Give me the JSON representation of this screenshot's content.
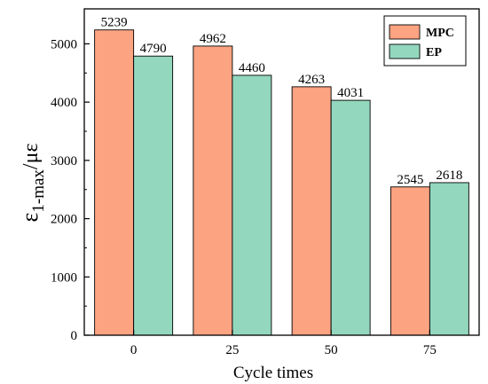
{
  "chart_data": {
    "type": "bar",
    "categories": [
      "0",
      "25",
      "50",
      "75"
    ],
    "series": [
      {
        "name": "MPC",
        "values": [
          5239,
          4962,
          4263,
          2545
        ],
        "color": "#FCA382"
      },
      {
        "name": "EP",
        "values": [
          4790,
          4460,
          4031,
          2618
        ],
        "color": "#93D7BE"
      }
    ],
    "xlabel": "Cycle times",
    "ylabel": {
      "symbol": "ε",
      "subscript": "1-max",
      "suffix": "/με"
    },
    "ylim": [
      0,
      5600
    ],
    "yticks": [
      0,
      1000,
      2000,
      3000,
      4000,
      5000
    ],
    "data_labels": true,
    "grid": false,
    "legend_position": "top-right"
  }
}
